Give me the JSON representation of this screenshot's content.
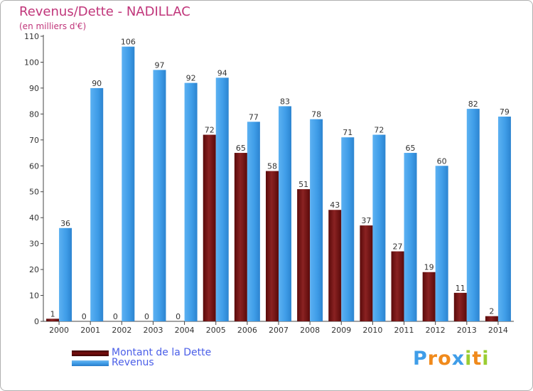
{
  "chart_data": {
    "type": "bar",
    "title": "Revenus/Dette - NADILLAC",
    "subtitle": "(en milliers d'€)",
    "categories": [
      "2000",
      "2001",
      "2002",
      "2003",
      "2004",
      "2005",
      "2006",
      "2007",
      "2008",
      "2009",
      "2010",
      "2011",
      "2012",
      "2013",
      "2014"
    ],
    "series": [
      {
        "name": "Montant de la Dette",
        "color": "#7a1010",
        "values": [
          1,
          0,
          0,
          0,
          0,
          72,
          65,
          58,
          51,
          43,
          37,
          27,
          19,
          11,
          2
        ]
      },
      {
        "name": "Revenus",
        "color": "#3f9de8",
        "values": [
          36,
          90,
          106,
          97,
          92,
          94,
          77,
          83,
          78,
          71,
          72,
          65,
          60,
          82,
          79
        ]
      }
    ],
    "ylim": [
      0,
      110
    ],
    "yticks": [
      0,
      10,
      20,
      30,
      40,
      50,
      60,
      70,
      80,
      90,
      100,
      110
    ],
    "grid": false,
    "legend_position": "bottom-left"
  },
  "logo": {
    "text": "Proxiti"
  },
  "colors": {
    "title": "#c0357a",
    "legend_text": "#4a5ee8",
    "axis": "#444444"
  }
}
